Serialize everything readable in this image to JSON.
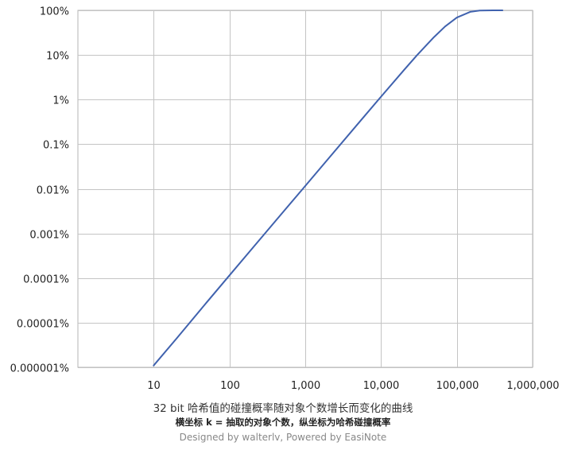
{
  "chart_data": {
    "type": "line",
    "xscale": "log",
    "yscale": "log",
    "xlim": [
      1,
      1000000
    ],
    "ylim": [
      1e-06,
      100
    ],
    "grid": true,
    "x_ticks": [
      {
        "value": 10,
        "label": "10"
      },
      {
        "value": 100,
        "label": "100"
      },
      {
        "value": 1000,
        "label": "1,000"
      },
      {
        "value": 10000,
        "label": "10,000"
      },
      {
        "value": 100000,
        "label": "100,000"
      },
      {
        "value": 1000000,
        "label": "1,000,000"
      }
    ],
    "y_ticks": [
      {
        "value": 100,
        "label": "100%"
      },
      {
        "value": 10,
        "label": "10%"
      },
      {
        "value": 1,
        "label": "1%"
      },
      {
        "value": 0.1,
        "label": "0.1%"
      },
      {
        "value": 0.01,
        "label": "0.01%"
      },
      {
        "value": 0.001,
        "label": "0.001%"
      },
      {
        "value": 0.0001,
        "label": "0.0001%"
      },
      {
        "value": 1e-05,
        "label": "0.00001%"
      },
      {
        "value": 1e-06,
        "label": "0.000001%"
      }
    ],
    "series": [
      {
        "color": "#4062AE",
        "x": [
          10,
          20,
          50,
          100,
          200,
          500,
          1000,
          2000,
          5000,
          10000,
          20000,
          30000,
          50000,
          70000,
          100000,
          150000,
          200000,
          300000,
          400000
        ],
        "y": [
          1.1e-06,
          4.4e-06,
          2.85e-05,
          0.000115,
          0.000463,
          0.00291,
          0.0116,
          0.0466,
          0.291,
          1.16,
          4.55,
          9.96,
          25.2,
          43.5,
          68.8,
          92.6,
          99.0,
          99.997,
          100
        ]
      }
    ],
    "title": "32 bit 哈希值的碰撞概率随对象个数增长而变化的曲线",
    "subtitle": "横坐标 k = 抽取的对象个数，纵坐标为哈希碰撞概率",
    "credit": "Designed by walterlv, Powered by EasiNote"
  }
}
